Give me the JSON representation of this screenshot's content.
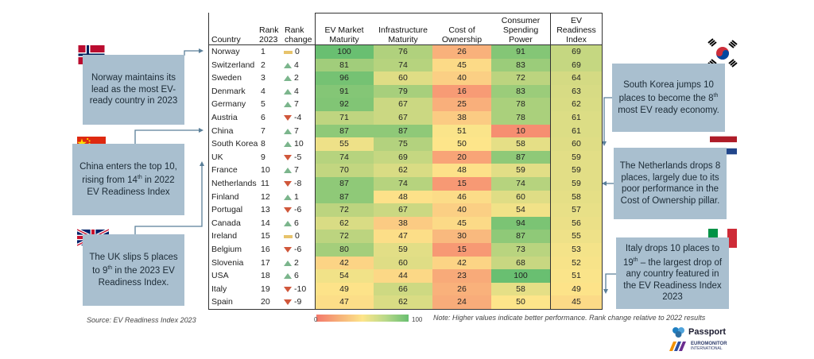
{
  "columns": {
    "country": "Country",
    "rank": [
      "Rank",
      "2023"
    ],
    "change": [
      "Rank",
      "change"
    ],
    "ev": [
      "EV Market",
      "Maturity"
    ],
    "infra": [
      "Infrastructure",
      "Maturity"
    ],
    "cost": [
      "Cost of",
      "Ownership"
    ],
    "spend": [
      "Consumer",
      "Spending",
      "Power"
    ],
    "index": [
      "EV Readiness",
      "Index"
    ]
  },
  "chart_data": {
    "type": "table",
    "columns": [
      "Country",
      "Rank 2023",
      "Rank change",
      "EV Market Maturity",
      "Infrastructure Maturity",
      "Cost of Ownership",
      "Consumer Spending Power",
      "EV Readiness Index"
    ],
    "rows": [
      {
        "country": "Norway",
        "rank": "1",
        "change": "0",
        "dir": "same",
        "ev": 100,
        "infra": 76,
        "cost": 26,
        "spend": 91,
        "index": 69
      },
      {
        "country": "Switzerland",
        "rank": "2",
        "change": "4",
        "dir": "up",
        "ev": 81,
        "infra": 74,
        "cost": 45,
        "spend": 83,
        "index": 69
      },
      {
        "country": "Sweden",
        "rank": "3",
        "change": "2",
        "dir": "up",
        "ev": 96,
        "infra": 60,
        "cost": 40,
        "spend": 72,
        "index": 64
      },
      {
        "country": "Denmark",
        "rank": "4",
        "change": "4",
        "dir": "up",
        "ev": 91,
        "infra": 79,
        "cost": 16,
        "spend": 83,
        "index": 63
      },
      {
        "country": "Germany",
        "rank": "5",
        "change": "7",
        "dir": "up",
        "ev": 92,
        "infra": 67,
        "cost": 25,
        "spend": 78,
        "index": 62
      },
      {
        "country": "Austria",
        "rank": "6",
        "change": "-4",
        "dir": "down",
        "ev": 71,
        "infra": 67,
        "cost": 38,
        "spend": 78,
        "index": 61
      },
      {
        "country": "China",
        "rank": "7",
        "change": "7",
        "dir": "up",
        "ev": 87,
        "infra": 87,
        "cost": 51,
        "spend": 10,
        "index": 61
      },
      {
        "country": "South Korea",
        "rank": "8",
        "change": "10",
        "dir": "up",
        "ev": 55,
        "infra": 75,
        "cost": 50,
        "spend": 58,
        "index": 60
      },
      {
        "country": "UK",
        "rank": "9",
        "change": "-5",
        "dir": "down",
        "ev": 74,
        "infra": 69,
        "cost": 20,
        "spend": 87,
        "index": 59
      },
      {
        "country": "France",
        "rank": "10",
        "change": "7",
        "dir": "up",
        "ev": 70,
        "infra": 62,
        "cost": 48,
        "spend": 59,
        "index": 59
      },
      {
        "country": "Netherlands",
        "rank": "11",
        "change": "-8",
        "dir": "down",
        "ev": 87,
        "infra": 74,
        "cost": 15,
        "spend": 74,
        "index": 59
      },
      {
        "country": "Finland",
        "rank": "12",
        "change": "1",
        "dir": "up",
        "ev": 87,
        "infra": 48,
        "cost": 46,
        "spend": 60,
        "index": 58
      },
      {
        "country": "Portugal",
        "rank": "13",
        "change": "-6",
        "dir": "down",
        "ev": 72,
        "infra": 67,
        "cost": 40,
        "spend": 54,
        "index": 57
      },
      {
        "country": "Canada",
        "rank": "14",
        "change": "6",
        "dir": "up",
        "ev": 62,
        "infra": 38,
        "cost": 45,
        "spend": 94,
        "index": 56
      },
      {
        "country": "Ireland",
        "rank": "15",
        "change": "0",
        "dir": "same",
        "ev": 72,
        "infra": 47,
        "cost": 30,
        "spend": 87,
        "index": 55
      },
      {
        "country": "Belgium",
        "rank": "16",
        "change": "-6",
        "dir": "down",
        "ev": 80,
        "infra": 59,
        "cost": 15,
        "spend": 73,
        "index": 53
      },
      {
        "country": "Slovenia",
        "rank": "17",
        "change": "2",
        "dir": "up",
        "ev": 42,
        "infra": 60,
        "cost": 42,
        "spend": 68,
        "index": 52
      },
      {
        "country": "USA",
        "rank": "18",
        "change": "6",
        "dir": "up",
        "ev": 54,
        "infra": 44,
        "cost": 23,
        "spend": 100,
        "index": 51
      },
      {
        "country": "Italy",
        "rank": "19",
        "change": "-10",
        "dir": "down",
        "ev": 49,
        "infra": 66,
        "cost": 26,
        "spend": 58,
        "index": 49
      },
      {
        "country": "Spain",
        "rank": "20",
        "change": "-9",
        "dir": "down",
        "ev": 47,
        "infra": 62,
        "cost": 24,
        "spend": 50,
        "index": 45
      }
    ],
    "color_scale": {
      "min": 0,
      "max": 100,
      "low": "#f4786b",
      "mid": "#fde58a",
      "high": "#69bf71"
    }
  },
  "callouts": {
    "norway": "Norway maintains its lead as the most EV-ready country in 2023",
    "china": [
      "China enters the top 10, rising from 14",
      "th",
      " in 2022 EV Readiness Index"
    ],
    "uk": [
      "The UK slips 5 places to 9",
      "th",
      " in the 2023 EV Readiness Index."
    ],
    "korea": [
      "South Korea jumps 10 places to become the 8",
      "th",
      " most EV ready economy."
    ],
    "netherlands": "The Netherlands drops 8 places, largely due to its poor performance in the Cost of Ownership pillar.",
    "italy": [
      "Italy drops 10 places to 19",
      "th",
      " – the largest drop of any country featured in the EV Readiness Index 2023"
    ]
  },
  "legend": {
    "min_label": "0",
    "max_label": "100"
  },
  "source": "Source: EV Readiness Index 2023",
  "note": "Note: Higher values indicate better performance. Rank change relative to 2022 results",
  "brand": {
    "passport": "Passport",
    "euromonitor_1": "EUROMONITOR",
    "euromonitor_2": "INTERNATIONAL"
  },
  "colors": {
    "callout_bg": "#a9bfcf",
    "connector": "#5a7f99",
    "up": "#7bb58c",
    "down": "#d0573b",
    "same": "#e7c36b"
  },
  "icons": [
    "norway-flag",
    "china-flag",
    "uk-flag",
    "south-korea-flag",
    "netherlands-flag",
    "italy-flag"
  ]
}
